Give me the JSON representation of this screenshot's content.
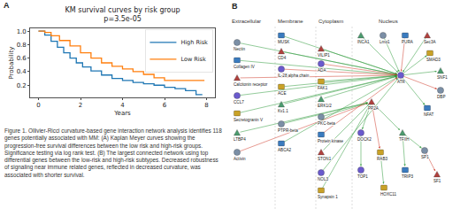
{
  "panel_letters": [
    "A",
    "B"
  ],
  "chart_data": {
    "type": "line",
    "title": "KM survival curves by risk group",
    "subtitle": "p=3.5e-05",
    "x_label": "Years",
    "y_label": "Probability",
    "line_style": "step",
    "legend": "upper right",
    "grid": false,
    "xlim": [
      -0.4,
      8.4
    ],
    "xticks": [
      0,
      2,
      4,
      6,
      8
    ],
    "ylim": [
      0.02,
      1.04
    ],
    "yticks": [
      0.2,
      0.4,
      0.6,
      0.8,
      {
        "value": 1,
        "label": "1.0"
      }
    ],
    "series": [
      {
        "name": "High Risk",
        "color": "#1f77b4",
        "x": [
          0,
          0.3,
          0.6,
          0.9,
          1.2,
          1.5,
          1.8,
          2.1,
          2.5,
          3,
          3.5,
          4,
          4.5,
          5,
          5.5,
          6,
          6.5,
          7,
          7.5,
          7.8
        ],
        "values": [
          1,
          0.94,
          0.85,
          0.76,
          0.68,
          0.6,
          0.53,
          0.47,
          0.41,
          0.35,
          0.3,
          0.27,
          0.24,
          0.22,
          0.2,
          0.17,
          0.15,
          0.12,
          0.06,
          0.06
        ]
      },
      {
        "name": "Low Risk",
        "color": "#ff7f0e",
        "x": [
          0,
          0.3,
          0.6,
          1,
          1.5,
          2,
          2.5,
          3,
          3.5,
          4,
          4.5,
          5,
          5.5,
          6,
          6.5,
          7,
          7.5,
          7.9
        ],
        "values": [
          1,
          0.98,
          0.93,
          0.86,
          0.78,
          0.68,
          0.6,
          0.53,
          0.48,
          0.44,
          0.4,
          0.36,
          0.31,
          0.27,
          0.27,
          0.27,
          0.27,
          0.27
        ]
      }
    ]
  },
  "caption": "Figure 1. Ollivier-Ricci curvature-based gene interaction network analysis identifies 118 genes potentially associated with MM: (A) Kaplan Meyer curves showing the progression-free survival differences between the low risk and high-risk groups. Significance testing via log rank test. (B) The largest connected network using top differential genes between the low-risk and high-risk subtypes. Decreased robustness of signaling near immune related genes, reflected in decreased curvature, was associated with shorter survival.",
  "network": {
    "compartments": [
      "Extracellular",
      "Membrane",
      "Cytoplasm",
      "Nucleus"
    ],
    "nodes": [
      {
        "label": "Nectin"
      },
      {
        "label": "Collagen IV"
      },
      {
        "label": "Calcitonin receptor"
      },
      {
        "label": "CCL7"
      },
      {
        "label": "Secretogranin V"
      },
      {
        "label": "LTBP4"
      },
      {
        "label": "Activin"
      },
      {
        "label": "MUSK"
      },
      {
        "label": "CD4"
      },
      {
        "label": "IL-28 alpha chain"
      },
      {
        "label": "ACE"
      },
      {
        "label": "Kv1.1"
      },
      {
        "label": "PTPR-beta"
      },
      {
        "label": "ABCA2"
      },
      {
        "label": "VILIP1"
      },
      {
        "label": "ADA"
      },
      {
        "label": "FAK1"
      },
      {
        "label": "ERK1/2"
      },
      {
        "label": "PKC-beta"
      },
      {
        "label": "Protein kinase"
      },
      {
        "label": "STON1"
      },
      {
        "label": "NOL3"
      },
      {
        "label": "Synapsin 1"
      },
      {
        "label": "INCA1"
      },
      {
        "label": "Lmo1"
      },
      {
        "label": "PURA"
      },
      {
        "label": "Sec3A"
      },
      {
        "label": "ATR"
      },
      {
        "label": "SMAD3"
      },
      {
        "label": "SNF1"
      },
      {
        "label": "DBP"
      },
      {
        "label": "NFAT"
      },
      {
        "label": "PP2A"
      },
      {
        "label": "DOCK2"
      },
      {
        "label": "RAB3"
      },
      {
        "label": "TFIIH"
      },
      {
        "label": "SP1"
      },
      {
        "label": "TRIP3"
      },
      {
        "label": "SF1"
      },
      {
        "label": "TOP1"
      },
      {
        "label": "HOXC11"
      }
    ],
    "edges": [
      {
        "from": "Nectin",
        "to": "ATR",
        "color": "green"
      },
      {
        "from": "Collagen IV",
        "to": "ATR",
        "color": "green"
      },
      {
        "from": "Calcitonin receptor",
        "to": "ATR",
        "color": "red"
      },
      {
        "from": "CCL7",
        "to": "ATR",
        "color": "green"
      },
      {
        "from": "Secretogranin V",
        "to": "ATR",
        "color": "green"
      },
      {
        "from": "LTBP4",
        "to": "PP2A",
        "color": "green"
      },
      {
        "from": "Activin",
        "to": "PP2A",
        "color": "red"
      },
      {
        "from": "MUSK",
        "to": "ATR",
        "color": "green"
      },
      {
        "from": "CD4",
        "to": "ATR",
        "color": "green"
      },
      {
        "from": "IL-28 alpha chain",
        "to": "ATR",
        "color": "red"
      },
      {
        "from": "ACE",
        "to": "ATR",
        "color": "green"
      },
      {
        "from": "Kv1.1",
        "to": "ATR",
        "color": "green"
      },
      {
        "from": "PTPR-beta",
        "to": "PP2A",
        "color": "green"
      },
      {
        "from": "ABCA2",
        "to": "ATR",
        "color": "green"
      },
      {
        "from": "VILIP1",
        "to": "ATR",
        "color": "green"
      },
      {
        "from": "ADA",
        "to": "ATR",
        "color": "red"
      },
      {
        "from": "FAK1",
        "to": "ATR",
        "color": "green"
      },
      {
        "from": "ERK1/2",
        "to": "ATR",
        "color": "green"
      },
      {
        "from": "PKC-beta",
        "to": "PP2A",
        "color": "green"
      },
      {
        "from": "Protein kinase",
        "to": "ATR",
        "color": "red"
      },
      {
        "from": "STON1",
        "to": "PP2A",
        "color": "green"
      },
      {
        "from": "NOL3",
        "to": "ATR",
        "color": "green"
      },
      {
        "from": "Synapsin 1",
        "to": "PP2A",
        "color": "green"
      },
      {
        "from": "INCA1",
        "to": "ATR",
        "color": "green"
      },
      {
        "from": "Lmo1",
        "to": "ATR",
        "color": "green"
      },
      {
        "from": "PURA",
        "to": "ATR",
        "color": "red"
      },
      {
        "from": "Sec3A",
        "to": "ATR",
        "color": "green"
      },
      {
        "from": "ATR",
        "to": "SMAD3",
        "color": "green"
      },
      {
        "from": "ATR",
        "to": "SNF1",
        "color": "green"
      },
      {
        "from": "ATR",
        "to": "DBP",
        "color": "red"
      },
      {
        "from": "ATR",
        "to": "NFAT",
        "color": "green"
      },
      {
        "from": "PP2A",
        "to": "DOCK2",
        "color": "green"
      },
      {
        "from": "PP2A",
        "to": "RAB3",
        "color": "red"
      },
      {
        "from": "PP2A",
        "to": "TFIIH",
        "color": "green"
      },
      {
        "from": "TFIIH",
        "to": "SP1",
        "color": "green"
      },
      {
        "from": "TFIIH",
        "to": "TRIP3",
        "color": "green"
      },
      {
        "from": "SP1",
        "to": "SF1",
        "color": "red"
      },
      {
        "from": "DOCK2",
        "to": "TOP1",
        "color": "green"
      },
      {
        "from": "RAB3",
        "to": "HOXC11",
        "color": "green"
      }
    ]
  }
}
